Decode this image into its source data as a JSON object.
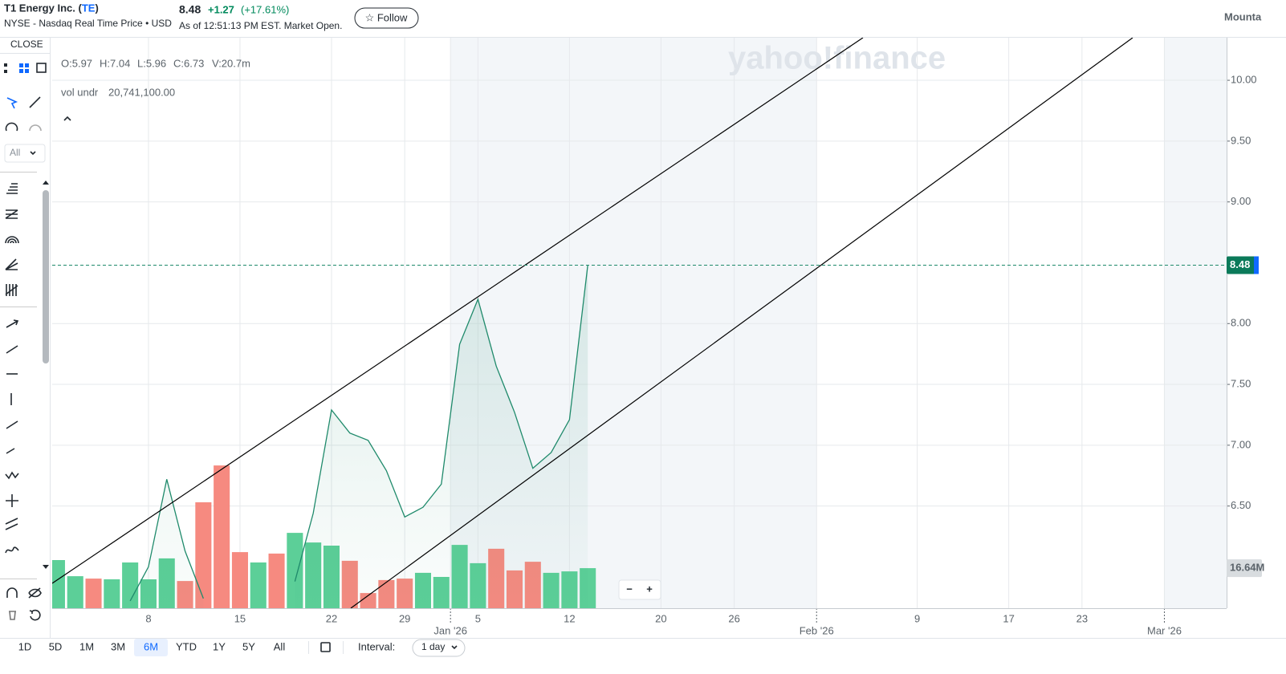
{
  "header": {
    "company": "T1 Energy Inc. (",
    "ticker": "TE",
    "paren": ")",
    "exchange": "NYSE - Nasdaq Real Time Price • USD",
    "price": "8.48",
    "change": "+1.27",
    "change_pct": "(+17.61%)",
    "timestamp": "As of 12:51:13 PM EST. Market Open.",
    "follow": "☆ Follow",
    "timezone": "Mounta"
  },
  "toolbar": {
    "close": "CLOSE",
    "filter": "All"
  },
  "legend": {
    "ohlcv": [
      "O:5.97",
      "H:7.04",
      "L:5.96",
      "C:6.73",
      "V:20.7m"
    ],
    "study": "vol undr",
    "study_value": "20,741,100.00"
  },
  "watermark": "yahoo!finance",
  "zoom": [
    "−",
    "+"
  ],
  "footer": {
    "ranges": [
      "1D",
      "5D",
      "1M",
      "3M",
      "6M",
      "YTD",
      "1Y",
      "5Y",
      "All"
    ],
    "active_range": 4,
    "interval_label": "Interval:",
    "interval": "1 day"
  },
  "chart_data": {
    "type": "line",
    "x": [
      -5,
      -4,
      -3,
      -2,
      -1,
      0,
      1,
      2,
      3,
      4,
      5,
      6,
      7,
      8,
      9,
      10,
      11,
      12,
      13,
      14,
      15,
      16,
      17,
      18,
      19,
      20,
      21,
      22,
      23,
      24
    ],
    "xlim": [
      -5.26,
      58.9
    ],
    "xticks": [
      {
        "value": 0,
        "label": "8"
      },
      {
        "value": 5,
        "label": "15"
      },
      {
        "value": 10,
        "label": "22"
      },
      {
        "value": 14,
        "label": "29"
      },
      {
        "value": 16.5,
        "label": "Jan '26"
      },
      {
        "value": 18,
        "label": "5"
      },
      {
        "value": 23,
        "label": "12"
      },
      {
        "value": 28,
        "label": "20"
      },
      {
        "value": 32,
        "label": "26"
      },
      {
        "value": 36.5,
        "label": "Feb '26"
      },
      {
        "value": 42,
        "label": "9"
      },
      {
        "value": 47,
        "label": "17"
      },
      {
        "value": 51,
        "label": "23"
      },
      {
        "value": 55.5,
        "label": "Mar '26"
      }
    ],
    "ylim": [
      5.66,
      10.35
    ],
    "yticks": [
      {
        "value": 6.5,
        "label": "6.50"
      },
      {
        "value": 7,
        "label": "7.00"
      },
      {
        "value": 7.5,
        "label": "7.50"
      },
      {
        "value": 8,
        "label": "8.00"
      },
      {
        "value": 9,
        "label": "9.00"
      },
      {
        "value": 9.5,
        "label": "9.50"
      },
      {
        "value": 10,
        "label": "10.00"
      }
    ],
    "y2lim": [
      0,
      237
    ],
    "grid": true,
    "current_price": 8.48,
    "current_volume": {
      "value": 16.64,
      "label": "16.64M"
    },
    "series": [
      {
        "color": "#1f8a6b",
        "values": [
          null,
          null,
          null,
          null,
          5.72,
          6.0,
          6.72,
          6.13,
          5.74,
          null,
          null,
          null,
          null,
          5.88,
          6.44,
          7.29,
          7.1,
          7.04,
          6.79,
          6.41,
          6.49,
          6.68,
          7.83,
          8.2,
          7.65,
          7.27,
          6.81,
          6.94,
          7.21,
          8.48
        ]
      },
      {
        "type": "bar",
        "axis": "y2",
        "colors": [
          "#5ccf98",
          "#5ccf98",
          "#f68a80",
          "#5ccf98",
          "#5ccf98",
          "#5ccf98",
          "#5ccf98",
          "#f68a80",
          "#f68a80",
          "#f68a80",
          "#f68a80",
          "#5ccf98",
          "#f68a80",
          "#5ccf98",
          "#5ccf98",
          "#5ccf98",
          "#f68a80",
          "#f68a80",
          "#f68a80",
          "#f68a80",
          "#5ccf98",
          "#5ccf98",
          "#5ccf98",
          "#5ccf98",
          "#f68a80",
          "#f68a80",
          "#f68a80",
          "#5ccf98",
          "#5ccf98",
          "#5ccf98"
        ],
        "values": [
          20,
          13.3,
          12.3,
          12,
          19,
          12,
          20.7,
          11.3,
          44,
          59.3,
          23.3,
          19,
          22.7,
          31.3,
          27.3,
          26,
          19.7,
          6.3,
          11.7,
          12.3,
          14.7,
          13,
          26.3,
          18.7,
          24.7,
          15.7,
          19.3,
          14.7,
          15.3,
          16.64
        ]
      }
    ]
  }
}
